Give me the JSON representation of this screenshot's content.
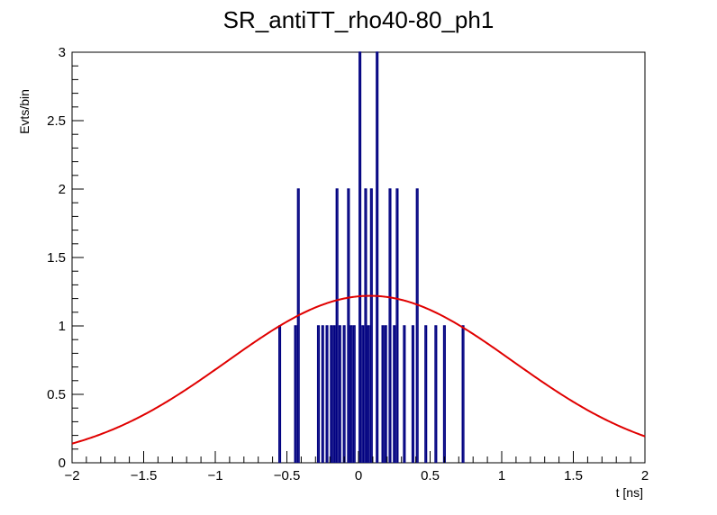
{
  "chart_data": {
    "type": "histogram",
    "title": "SR_antiTT_rho40-80_ph1",
    "xlabel": "t [ns]",
    "ylabel": "Evts/bin",
    "xlim": [
      -2,
      2
    ],
    "ylim": [
      0,
      3
    ],
    "x_ticks": [
      "−2",
      "−1.5",
      "−1",
      "−0.5",
      "0",
      "0.5",
      "1",
      "1.5",
      "2"
    ],
    "y_ticks": [
      "0",
      "0.5",
      "1",
      "1.5",
      "2",
      "2.5",
      "3"
    ],
    "histogram": {
      "name": "",
      "color": "#000080",
      "bin_width": 0.01,
      "bins": [
        {
          "x": -0.55,
          "count": 1
        },
        {
          "x": -0.44,
          "count": 1
        },
        {
          "x": -0.42,
          "count": 2
        },
        {
          "x": -0.28,
          "count": 1
        },
        {
          "x": -0.25,
          "count": 1
        },
        {
          "x": -0.22,
          "count": 1
        },
        {
          "x": -0.19,
          "count": 1
        },
        {
          "x": -0.17,
          "count": 1
        },
        {
          "x": -0.15,
          "count": 2
        },
        {
          "x": -0.13,
          "count": 1
        },
        {
          "x": -0.1,
          "count": 1
        },
        {
          "x": -0.07,
          "count": 2
        },
        {
          "x": -0.05,
          "count": 1
        },
        {
          "x": -0.03,
          "count": 1
        },
        {
          "x": 0.01,
          "count": 3
        },
        {
          "x": 0.03,
          "count": 1
        },
        {
          "x": 0.05,
          "count": 2
        },
        {
          "x": 0.07,
          "count": 1
        },
        {
          "x": 0.09,
          "count": 2
        },
        {
          "x": 0.13,
          "count": 3
        },
        {
          "x": 0.17,
          "count": 1
        },
        {
          "x": 0.19,
          "count": 1
        },
        {
          "x": 0.22,
          "count": 2
        },
        {
          "x": 0.25,
          "count": 1
        },
        {
          "x": 0.27,
          "count": 2
        },
        {
          "x": 0.32,
          "count": 1
        },
        {
          "x": 0.38,
          "count": 1
        },
        {
          "x": 0.41,
          "count": 2
        },
        {
          "x": 0.47,
          "count": 1
        },
        {
          "x": 0.54,
          "count": 1
        },
        {
          "x": 0.6,
          "count": 1
        },
        {
          "x": 0.73,
          "count": 1
        }
      ]
    },
    "fit": {
      "type": "gaussian",
      "color": "#e00000",
      "amplitude": 1.22,
      "mean": 0.08,
      "sigma": 1.0
    }
  }
}
